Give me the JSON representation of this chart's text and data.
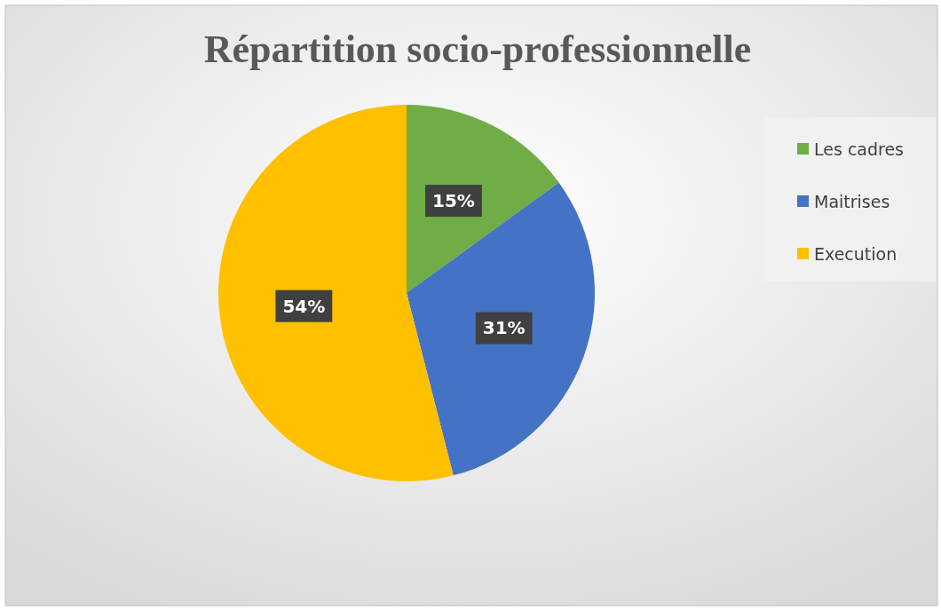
{
  "chart_data": {
    "type": "pie",
    "title": "Répartition socio-professionnelle",
    "categories": [
      "Les cadres",
      "Maitrises",
      "Execution"
    ],
    "values": [
      15,
      31,
      54
    ],
    "value_labels": [
      "15%",
      "31%",
      "54%"
    ],
    "colors": [
      "#70ad47",
      "#4472c4",
      "#ffc000"
    ],
    "legend": "right"
  }
}
